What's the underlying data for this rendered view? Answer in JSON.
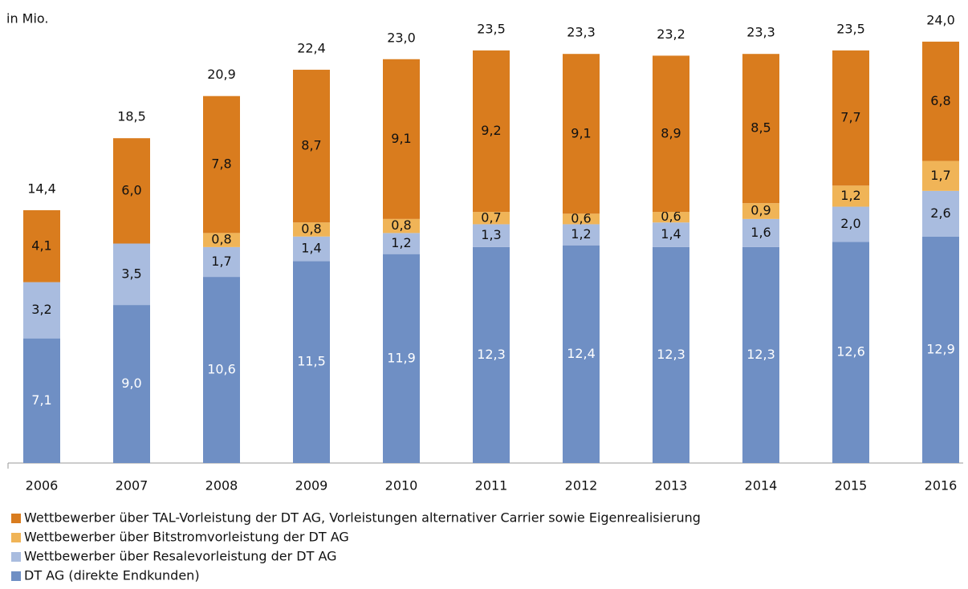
{
  "chart_data": {
    "type": "stacked_bar",
    "y_label": "in Mio.",
    "categories": [
      "2006",
      "2007",
      "2008",
      "2009",
      "2010",
      "2011",
      "2012",
      "2013",
      "2014",
      "2015",
      "2016"
    ],
    "series": [
      {
        "name": "DT AG (direkte Endkunden)",
        "color": "#6f8fc4",
        "label_color": "#ffffff",
        "values": [
          7.1,
          9.0,
          10.6,
          11.5,
          11.9,
          12.3,
          12.4,
          12.3,
          12.3,
          12.6,
          12.9
        ],
        "value_labels": [
          "7,1",
          "9,0",
          "10,6",
          "11,5",
          "11,9",
          "12,3",
          "12,4",
          "12,3",
          "12,3",
          "12,6",
          "12,9"
        ]
      },
      {
        "name": "Wettbewerber über Resalevorleistung der DT AG",
        "color": "#a9bcdf",
        "label_color": "#111111",
        "values": [
          3.2,
          3.5,
          1.7,
          1.4,
          1.2,
          1.3,
          1.2,
          1.4,
          1.6,
          2.0,
          2.6
        ],
        "value_labels": [
          "3,2",
          "3,5",
          "1,7",
          "1,4",
          "1,2",
          "1,3",
          "1,2",
          "1,4",
          "1,6",
          "2,0",
          "2,6"
        ]
      },
      {
        "name": "Wettbewerber über Bitstromvorleistung der DT AG",
        "color": "#f0b457",
        "label_color": "#111111",
        "values": [
          null,
          null,
          0.8,
          0.8,
          0.8,
          0.7,
          0.6,
          0.6,
          0.9,
          1.2,
          1.7
        ],
        "value_labels": [
          null,
          null,
          "0,8",
          "0,8",
          "0,8",
          "0,7",
          "0,6",
          "0,6",
          "0,9",
          "1,2",
          "1,7"
        ]
      },
      {
        "name": "Wettbewerber über TAL-Vorleistung der DT AG, Vorleistungen alternativer Carrier sowie Eigenrealisierung",
        "color": "#d97c1e",
        "label_color": "#111111",
        "values": [
          4.1,
          6.0,
          7.8,
          8.7,
          9.1,
          9.2,
          9.1,
          8.9,
          8.5,
          7.7,
          6.8
        ],
        "value_labels": [
          "4,1",
          "6,0",
          "7,8",
          "8,7",
          "9,1",
          "9,2",
          "9,1",
          "8,9",
          "8,5",
          "7,7",
          "6,8"
        ]
      }
    ],
    "totals": {
      "values": [
        14.4,
        18.5,
        20.9,
        22.4,
        23.0,
        23.5,
        23.3,
        23.2,
        23.3,
        23.5,
        24.0
      ],
      "value_labels": [
        "14,4",
        "18,5",
        "20,9",
        "22,4",
        "23,0",
        "23,5",
        "23,3",
        "23,2",
        "23,3",
        "23,5",
        "24,0"
      ]
    },
    "ylim": [
      0,
      25
    ]
  }
}
